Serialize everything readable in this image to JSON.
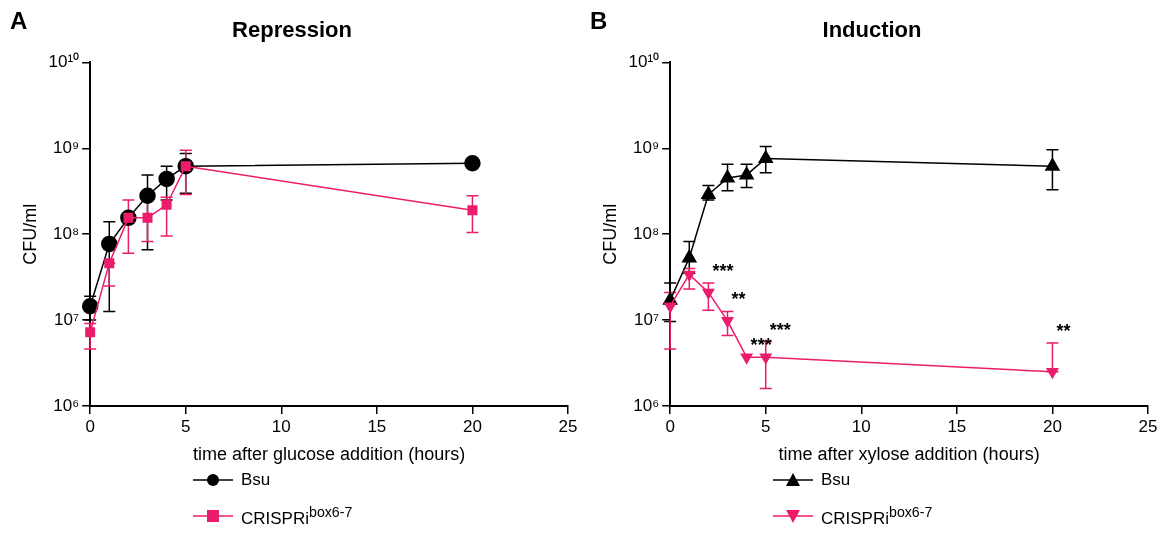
{
  "chart_data": [
    {
      "type": "line",
      "title": "Repression",
      "xlabel": "time after glucose addition (hours)",
      "ylabel": "CFU/ml",
      "log": "y",
      "grid": false,
      "legend": "bottom",
      "line_style": "solid",
      "xlim": [
        0,
        25
      ],
      "xticks": [
        0,
        5,
        10,
        15,
        20,
        25
      ],
      "ylim": [
        1000000,
        10000000000
      ],
      "yticks": [
        {
          "value": 1000000,
          "label": "10⁶"
        },
        {
          "value": 10000000,
          "label": "10⁷"
        },
        {
          "value": 100000000,
          "label": "10⁸"
        },
        {
          "value": 1000000000,
          "label": "10⁹"
        },
        {
          "value": 10000000000,
          "label": "10¹⁰"
        }
      ],
      "x": [
        0,
        1,
        2,
        3,
        4,
        5,
        20
      ],
      "series": [
        {
          "name": "Bsu",
          "color": "#000000",
          "marker": "circle",
          "values": [
            14500000,
            77000000,
            155000000,
            280000000,
            440000000,
            620000000,
            670000000
          ],
          "errors": [
            [
              10000000,
              19000000
            ],
            [
              12600000,
              140000000
            ],
            null,
            [
              66000000,
              490000000
            ],
            [
              250000000,
              620000000
            ],
            [
              300000000,
              870000000
            ],
            null
          ]
        },
        {
          "name": "CRISPRi$^{box6-7}$",
          "color": "#ec1c6c",
          "marker": "square",
          "values": [
            7200000,
            46000000,
            155000000,
            155000000,
            220000000,
            620000000,
            190000000
          ],
          "errors": [
            [
              4600000,
              9100000
            ],
            [
              25000000,
              46000000
            ],
            [
              60000000,
              250000000
            ],
            [
              82000000,
              250000000
            ],
            [
              95000000,
              270000000
            ],
            [
              290000000,
              950000000
            ],
            [
              105000000,
              280000000
            ]
          ]
        }
      ],
      "annotations": [
        "A"
      ]
    },
    {
      "type": "line",
      "title": "Induction",
      "xlabel": "time after xylose addition (hours)",
      "ylabel": "CFU/ml",
      "log": "y",
      "grid": false,
      "legend": "bottom",
      "line_style": "solid",
      "xlim": [
        0,
        25
      ],
      "xticks": [
        0,
        5,
        10,
        15,
        20,
        25
      ],
      "ylim": [
        1000000,
        10000000000
      ],
      "yticks": [
        {
          "value": 1000000,
          "label": "10⁶"
        },
        {
          "value": 10000000,
          "label": "10⁷"
        },
        {
          "value": 100000000,
          "label": "10⁸"
        },
        {
          "value": 1000000000,
          "label": "10⁹"
        },
        {
          "value": 10000000000,
          "label": "10¹⁰"
        }
      ],
      "x": [
        0,
        1,
        2,
        3,
        4,
        5,
        20
      ],
      "series": [
        {
          "name": "Bsu",
          "color": "#000000",
          "marker": "triangle",
          "values": [
            17000000,
            53000000,
            290000000,
            450000000,
            490000000,
            760000000,
            620000000
          ],
          "errors": [
            [
              9600000,
              27000000
            ],
            [
              35000000,
              82000000
            ],
            [
              250000000,
              370000000
            ],
            [
              320000000,
              650000000
            ],
            [
              350000000,
              650000000
            ],
            [
              520000000,
              1050000000
            ],
            [
              330000000,
              960000000
            ]
          ]
        },
        {
          "name": "CRISPRi$^{box6-7}$",
          "color": "#ec1c6c",
          "marker": "triangle-down",
          "values": [
            14500000,
            34000000,
            21000000,
            9800000,
            3700000,
            3700000,
            2500000
          ],
          "errors": [
            [
              4600000,
              21000000
            ],
            [
              23000000,
              40000000
            ],
            [
              13000000,
              27000000
            ],
            [
              6600000,
              12600000
            ],
            null,
            [
              1600000,
              5600000
            ],
            [
              2500000,
              5400000
            ]
          ]
        }
      ],
      "annotations": [
        "B",
        {
          "text": "***",
          "x": 2,
          "y": 27000000
        },
        {
          "text": "**",
          "x": 3,
          "y": 12600000
        },
        {
          "text": "***",
          "x": 4,
          "y": 3700000
        },
        {
          "text": "***",
          "x": 5,
          "y": 5600000
        },
        {
          "text": "**",
          "x": 20,
          "y": 5400000
        }
      ]
    }
  ]
}
